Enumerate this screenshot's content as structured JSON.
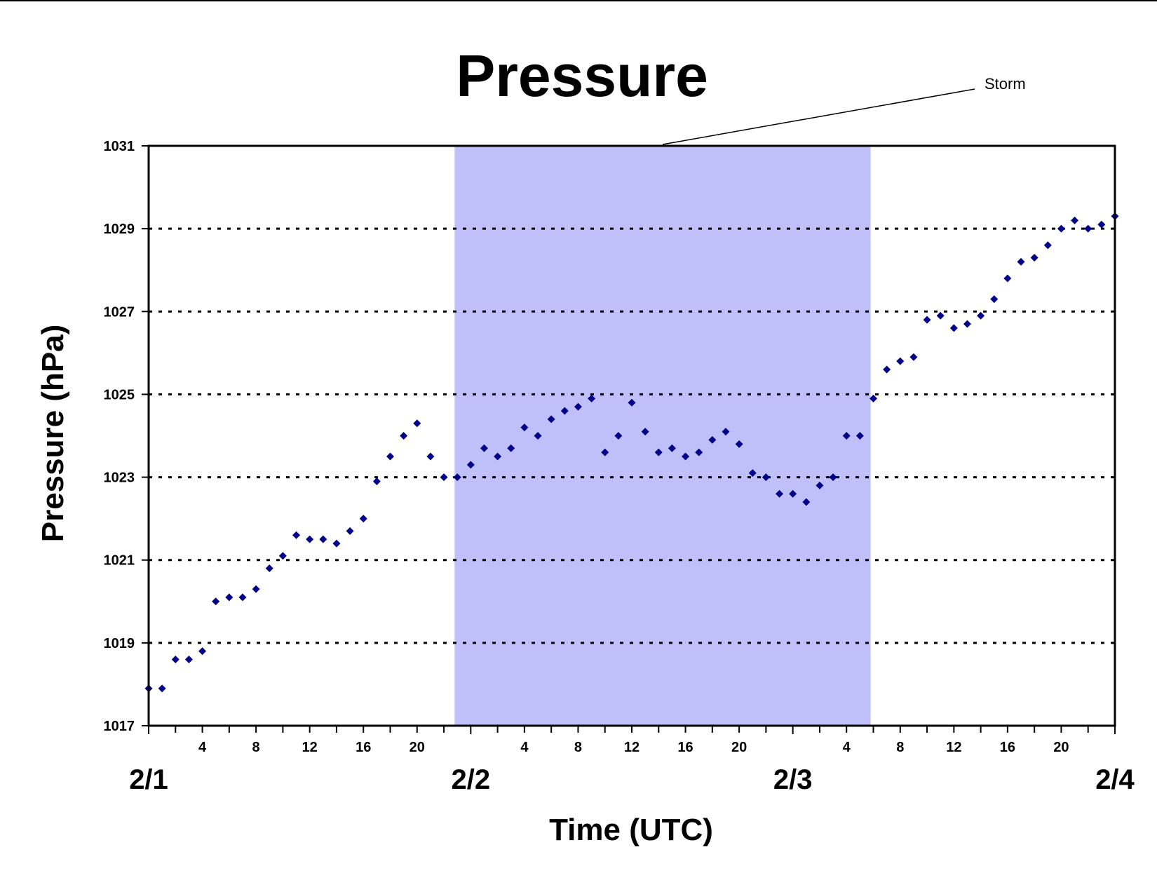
{
  "chart_data": {
    "type": "scatter",
    "title": "Pressure",
    "xlabel": "Time (UTC)",
    "ylabel": "Pressure (hPa)",
    "x_unit": "hour",
    "x_range": [
      0,
      72
    ],
    "ylim": [
      1017,
      1031
    ],
    "y_ticks": [
      1017,
      1019,
      1021,
      1023,
      1025,
      1027,
      1029,
      1031
    ],
    "grid": "horizontal dotted",
    "day_labels": [
      {
        "label": "2/1",
        "x": 0
      },
      {
        "label": "2/2",
        "x": 24
      },
      {
        "label": "2/3",
        "x": 48
      },
      {
        "label": "2/4",
        "x": 72
      }
    ],
    "hour_ticks": [
      {
        "x": 4,
        "label": "4"
      },
      {
        "x": 8,
        "label": "8"
      },
      {
        "x": 12,
        "label": "12"
      },
      {
        "x": 16,
        "label": "16"
      },
      {
        "x": 20,
        "label": "20"
      },
      {
        "x": 28,
        "label": "4"
      },
      {
        "x": 32,
        "label": "8"
      },
      {
        "x": 36,
        "label": "12"
      },
      {
        "x": 40,
        "label": "16"
      },
      {
        "x": 44,
        "label": "20"
      },
      {
        "x": 52,
        "label": "4"
      },
      {
        "x": 56,
        "label": "8"
      },
      {
        "x": 60,
        "label": "12"
      },
      {
        "x": 64,
        "label": "16"
      },
      {
        "x": 68,
        "label": "20"
      }
    ],
    "shaded_region": {
      "label": "Storm",
      "x_start": 22.8,
      "x_end": 53.8,
      "color": "#bfbffa"
    },
    "marker_color": "#00008b",
    "series": [
      {
        "x": [
          0,
          1,
          2,
          3,
          4,
          5,
          6,
          7,
          8,
          9,
          10,
          11,
          12,
          13,
          14,
          15,
          16,
          17,
          18,
          19,
          20,
          21,
          22,
          23,
          24,
          25,
          26,
          27,
          28,
          29,
          30,
          31,
          32,
          33,
          34,
          35,
          36,
          37,
          38,
          39,
          40,
          41,
          42,
          43,
          44,
          45,
          46,
          47,
          48,
          49,
          50,
          51,
          52,
          53,
          54,
          55,
          56,
          57,
          58,
          59,
          60,
          61,
          62,
          63,
          64,
          65,
          66,
          67,
          68,
          69,
          70,
          71,
          72
        ],
        "y": [
          1017.9,
          1017.9,
          1018.6,
          1018.6,
          1018.8,
          1020.0,
          1020.1,
          1020.1,
          1020.3,
          1020.8,
          1021.1,
          1021.6,
          1021.5,
          1021.5,
          1021.4,
          1021.7,
          1022.0,
          1022.9,
          1023.5,
          1024.0,
          1024.3,
          1023.5,
          1023.0,
          1023.0,
          1023.3,
          1023.7,
          1023.5,
          1023.7,
          1024.2,
          1024.0,
          1024.4,
          1024.6,
          1024.7,
          1024.9,
          1023.6,
          1024.0,
          1024.8,
          1024.1,
          1023.6,
          1023.7,
          1023.5,
          1023.6,
          1023.9,
          1024.1,
          1023.8,
          1023.1,
          1023.0,
          1022.6,
          1022.6,
          1022.4,
          1022.8,
          1023.0,
          1024.0,
          1024.0,
          1024.9,
          1025.6,
          1025.8,
          1025.9,
          1026.8,
          1026.9,
          1026.6,
          1026.7,
          1026.9,
          1027.3,
          1027.8,
          1028.2,
          1028.3,
          1028.6,
          1029.0,
          1029.2,
          1029.0,
          1029.1,
          1029.3
        ]
      }
    ]
  }
}
